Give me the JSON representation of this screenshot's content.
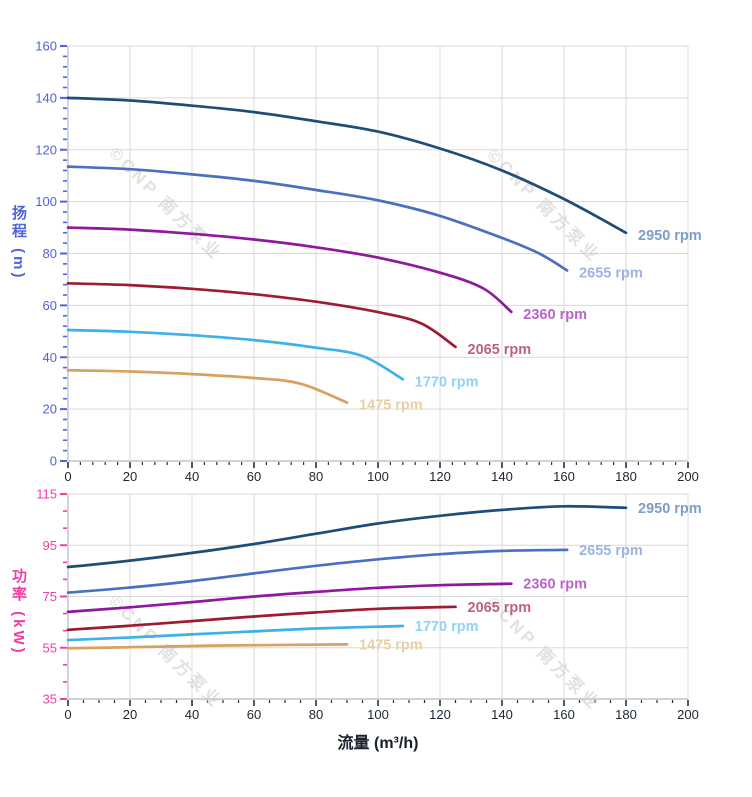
{
  "page": {
    "background": "#ffffff"
  },
  "x_axis_title": "流量 (m³/h)",
  "head_chart_y_title": "扬程 (m)",
  "power_chart_y_title": "功率 (kW)",
  "watermark": {
    "text": "©CNP 南方泵业",
    "color": "#c9c9c9"
  },
  "palette": {
    "grid": "#d9d9d9",
    "axis_line": "#bfc4ce",
    "x_tick": "#2a2f38",
    "x_tick_label": "#1c2530",
    "head_axis": "#5064d8",
    "power_axis": "#ee3fa5"
  },
  "chart_data": [
    {
      "id": "head",
      "type": "line",
      "title": "",
      "xlabel": "流量 (m³/h)",
      "ylabel": "扬程 (m)",
      "xlim": [
        0,
        200
      ],
      "ylim": [
        0,
        160
      ],
      "x_ticks": [
        0,
        20,
        40,
        60,
        80,
        100,
        120,
        140,
        160,
        180,
        200
      ],
      "y_ticks": [
        0,
        20,
        40,
        60,
        80,
        100,
        120,
        140,
        160
      ],
      "x_minor_step": 4,
      "y_minor_step": 4,
      "grid": true,
      "legend_position": "curve-end",
      "axis_color": "#5064d8",
      "series": [
        {
          "name": "2950 rpm",
          "color": "#1d4d78",
          "label_color": "#7e9dcc",
          "points": [
            [
              0,
              140
            ],
            [
              20,
              139
            ],
            [
              40,
              137
            ],
            [
              60,
              134.5
            ],
            [
              80,
              131
            ],
            [
              100,
              127
            ],
            [
              120,
              120.5
            ],
            [
              140,
              112
            ],
            [
              160,
              101
            ],
            [
              180,
              88
            ]
          ]
        },
        {
          "name": "2655 rpm",
          "color": "#4a70c0",
          "label_color": "#9fb3e2",
          "points": [
            [
              0,
              113.5
            ],
            [
              20,
              112.5
            ],
            [
              40,
              110.5
            ],
            [
              60,
              108
            ],
            [
              80,
              104.5
            ],
            [
              100,
              100.5
            ],
            [
              120,
              94.5
            ],
            [
              140,
              86
            ],
            [
              152,
              80
            ],
            [
              161,
              73.5
            ]
          ]
        },
        {
          "name": "2360 rpm",
          "color": "#8f189e",
          "label_color": "#bb63cc",
          "points": [
            [
              0,
              90
            ],
            [
              20,
              89.2
            ],
            [
              40,
              87.6
            ],
            [
              60,
              85.4
            ],
            [
              80,
              82.4
            ],
            [
              100,
              78.4
            ],
            [
              120,
              72.6
            ],
            [
              134,
              66.5
            ],
            [
              143,
              57.5
            ]
          ]
        },
        {
          "name": "2065 rpm",
          "color": "#9d1b33",
          "label_color": "#bb6378",
          "points": [
            [
              0,
              68.5
            ],
            [
              20,
              67.8
            ],
            [
              40,
              66.4
            ],
            [
              60,
              64.3
            ],
            [
              80,
              61.4
            ],
            [
              100,
              57.4
            ],
            [
              114,
              53
            ],
            [
              125,
              44
            ]
          ]
        },
        {
          "name": "1770 rpm",
          "color": "#3db1e8",
          "label_color": "#8ed2f5",
          "points": [
            [
              0,
              50.5
            ],
            [
              20,
              49.8
            ],
            [
              40,
              48.5
            ],
            [
              60,
              46.6
            ],
            [
              80,
              43.7
            ],
            [
              95,
              40.5
            ],
            [
              108,
              31.5
            ]
          ]
        },
        {
          "name": "1475 rpm",
          "color": "#d8a160",
          "label_color": "#e9cfa6",
          "points": [
            [
              0,
              35
            ],
            [
              20,
              34.5
            ],
            [
              40,
              33.5
            ],
            [
              60,
              32
            ],
            [
              75,
              29.8
            ],
            [
              90,
              22.5
            ]
          ]
        }
      ]
    },
    {
      "id": "power",
      "type": "line",
      "title": "",
      "xlabel": "流量 (m³/h)",
      "ylabel": "功率 (kW)",
      "xlim": [
        0,
        200
      ],
      "ylim": [
        35,
        115
      ],
      "x_ticks": [
        0,
        20,
        40,
        60,
        80,
        100,
        120,
        140,
        160,
        180,
        200
      ],
      "y_ticks": [
        35,
        55,
        75,
        95,
        115
      ],
      "x_minor_step": 5,
      "y_minor_step": 6.667,
      "grid": true,
      "legend_position": "curve-end",
      "axis_color": "#ee3fa5",
      "series": [
        {
          "name": "2950 rpm",
          "color": "#1d4d78",
          "label_color": "#7e9dcc",
          "points": [
            [
              0,
              86.5
            ],
            [
              20,
              89
            ],
            [
              40,
              92
            ],
            [
              60,
              95.5
            ],
            [
              80,
              99.5
            ],
            [
              100,
              103.5
            ],
            [
              120,
              106.5
            ],
            [
              140,
              108.8
            ],
            [
              160,
              110.2
            ],
            [
              180,
              109.6
            ]
          ]
        },
        {
          "name": "2655 rpm",
          "color": "#4a70c0",
          "label_color": "#9fb3e2",
          "points": [
            [
              0,
              76.5
            ],
            [
              20,
              78.5
            ],
            [
              40,
              81
            ],
            [
              60,
              84
            ],
            [
              80,
              87
            ],
            [
              100,
              89.5
            ],
            [
              120,
              91.5
            ],
            [
              140,
              92.8
            ],
            [
              161,
              93.2
            ]
          ]
        },
        {
          "name": "2360 rpm",
          "color": "#8f189e",
          "label_color": "#bb63cc",
          "points": [
            [
              0,
              69
            ],
            [
              20,
              70.8
            ],
            [
              40,
              72.8
            ],
            [
              60,
              75
            ],
            [
              80,
              76.8
            ],
            [
              100,
              78.4
            ],
            [
              120,
              79.4
            ],
            [
              143,
              80
            ]
          ]
        },
        {
          "name": "2065 rpm",
          "color": "#9d1b33",
          "label_color": "#bb6378",
          "points": [
            [
              0,
              62
            ],
            [
              20,
              63.6
            ],
            [
              40,
              65.4
            ],
            [
              60,
              67.2
            ],
            [
              80,
              68.8
            ],
            [
              100,
              70.2
            ],
            [
              125,
              71
            ]
          ]
        },
        {
          "name": "1770 rpm",
          "color": "#3db1e8",
          "label_color": "#8ed2f5",
          "points": [
            [
              0,
              58
            ],
            [
              20,
              59
            ],
            [
              40,
              60.2
            ],
            [
              60,
              61.4
            ],
            [
              80,
              62.5
            ],
            [
              108,
              63.5
            ]
          ]
        },
        {
          "name": "1475 rpm",
          "color": "#d8a160",
          "label_color": "#e9cfa6",
          "points": [
            [
              0,
              54.8
            ],
            [
              20,
              55.2
            ],
            [
              40,
              55.7
            ],
            [
              60,
              56
            ],
            [
              90,
              56.3
            ]
          ]
        }
      ]
    }
  ]
}
